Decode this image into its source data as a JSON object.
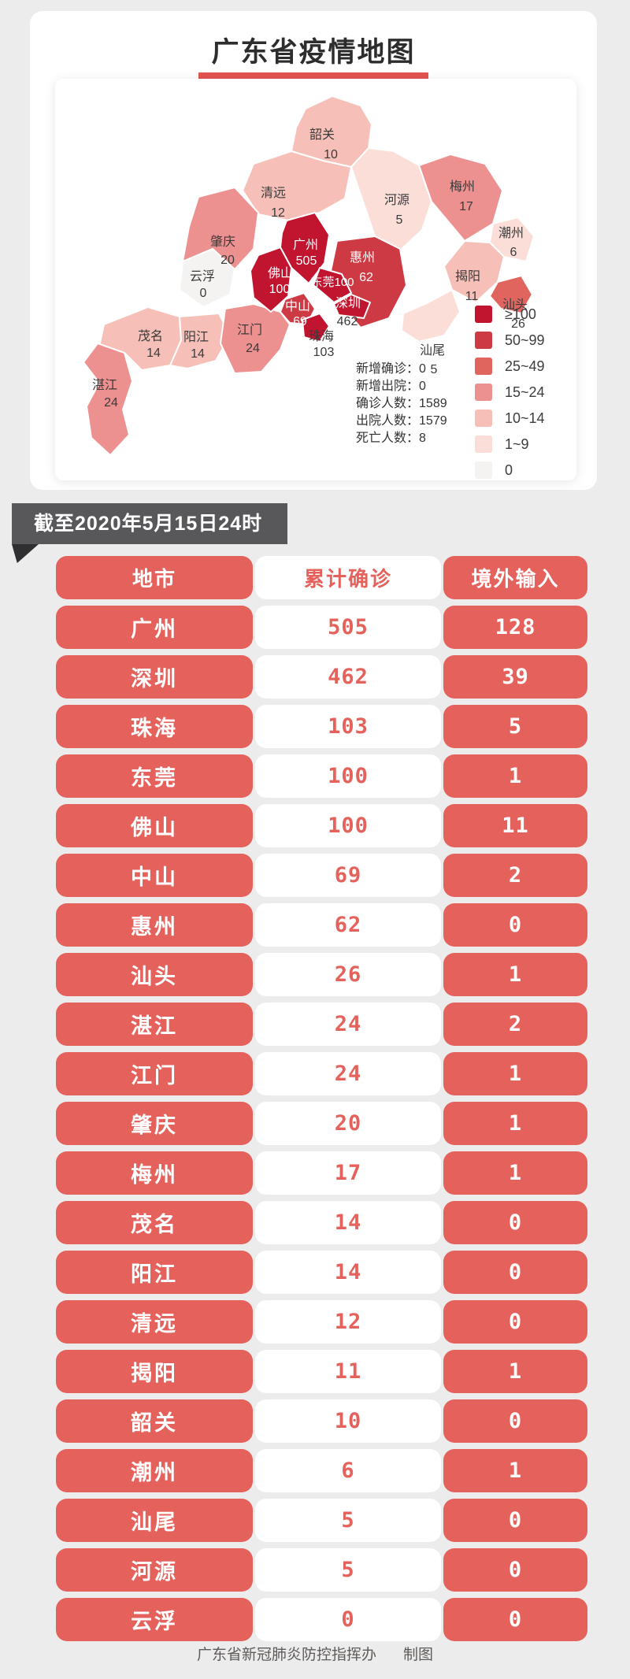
{
  "title": "广东省疫情地图",
  "map": {
    "cities": [
      {
        "name": "广州",
        "value": "505",
        "bucket": 0
      },
      {
        "name": "深圳",
        "value": "462",
        "bucket": 0
      },
      {
        "name": "珠海",
        "value": "103",
        "bucket": 0
      },
      {
        "name": "东莞",
        "value": "100",
        "bucket": 0
      },
      {
        "name": "佛山",
        "value": "100",
        "bucket": 0
      },
      {
        "name": "中山",
        "value": "69",
        "bucket": 1
      },
      {
        "name": "惠州",
        "value": "62",
        "bucket": 1
      },
      {
        "name": "汕头",
        "value": "26",
        "bucket": 2
      },
      {
        "name": "湛江",
        "value": "24",
        "bucket": 3
      },
      {
        "name": "江门",
        "value": "24",
        "bucket": 3
      },
      {
        "name": "肇庆",
        "value": "20",
        "bucket": 3
      },
      {
        "name": "梅州",
        "value": "17",
        "bucket": 3
      },
      {
        "name": "茂名",
        "value": "14",
        "bucket": 4
      },
      {
        "name": "阳江",
        "value": "14",
        "bucket": 4
      },
      {
        "name": "清远",
        "value": "12",
        "bucket": 4
      },
      {
        "name": "揭阳",
        "value": "11",
        "bucket": 4
      },
      {
        "name": "韶关",
        "value": "10",
        "bucket": 4
      },
      {
        "name": "潮州",
        "value": "6",
        "bucket": 5
      },
      {
        "name": "汕尾",
        "value": "5",
        "bucket": 5
      },
      {
        "name": "河源",
        "value": "5",
        "bucket": 5
      },
      {
        "name": "云浮",
        "value": "0",
        "bucket": 6
      }
    ],
    "legend": [
      {
        "label": "≥100",
        "color": "#c0142f"
      },
      {
        "label": "50~99",
        "color": "#ce3a44"
      },
      {
        "label": "25~49",
        "color": "#e0655f"
      },
      {
        "label": "15~24",
        "color": "#ec9090"
      },
      {
        "label": "10~14",
        "color": "#f6c0b8"
      },
      {
        "label": "1~9",
        "color": "#fbded8"
      },
      {
        "label": "0",
        "color": "#f4f3f1"
      }
    ],
    "stats": [
      {
        "label": "新增确诊",
        "value": "0"
      },
      {
        "label": "新增出院",
        "value": "0"
      },
      {
        "label": "确诊人数",
        "value": "1589"
      },
      {
        "label": "出院人数",
        "value": "1579"
      },
      {
        "label": "死亡人数",
        "value": "8"
      }
    ],
    "colon": "："
  },
  "banner": {
    "text": "截至2020年5月15日24时"
  },
  "table": {
    "headers": [
      "地市",
      "累计确诊",
      "境外输入"
    ],
    "rows": [
      [
        "广州",
        "505",
        "128"
      ],
      [
        "深圳",
        "462",
        "39"
      ],
      [
        "珠海",
        "103",
        "5"
      ],
      [
        "东莞",
        "100",
        "1"
      ],
      [
        "佛山",
        "100",
        "11"
      ],
      [
        "中山",
        "69",
        "2"
      ],
      [
        "惠州",
        "62",
        "0"
      ],
      [
        "汕头",
        "26",
        "1"
      ],
      [
        "湛江",
        "24",
        "2"
      ],
      [
        "江门",
        "24",
        "1"
      ],
      [
        "肇庆",
        "20",
        "1"
      ],
      [
        "梅州",
        "17",
        "1"
      ],
      [
        "茂名",
        "14",
        "0"
      ],
      [
        "阳江",
        "14",
        "0"
      ],
      [
        "清远",
        "12",
        "0"
      ],
      [
        "揭阳",
        "11",
        "1"
      ],
      [
        "韶关",
        "10",
        "0"
      ],
      [
        "潮州",
        "6",
        "1"
      ],
      [
        "汕尾",
        "5",
        "0"
      ],
      [
        "河源",
        "5",
        "0"
      ],
      [
        "云浮",
        "0",
        "0"
      ]
    ]
  },
  "footer": {
    "credit": "广东省新冠肺炎防控指挥办",
    "maker": "制图"
  },
  "colors": {
    "accent_red": "#e5625c",
    "title_underline": "#e4534f",
    "banner_bg": "#58585b",
    "banner_fold": "#2f2f31",
    "page_bg": "#ececec",
    "card_bg": "#ffffff",
    "text_dark": "#333333",
    "footer_text": "#5f5b59"
  },
  "chart_data": {
    "type": "table",
    "title": "广东省疫情地图",
    "columns": [
      "地市",
      "累计确诊",
      "境外输入"
    ],
    "rows": [
      [
        "广州",
        505,
        128
      ],
      [
        "深圳",
        462,
        39
      ],
      [
        "珠海",
        103,
        5
      ],
      [
        "东莞",
        100,
        1
      ],
      [
        "佛山",
        100,
        11
      ],
      [
        "中山",
        69,
        2
      ],
      [
        "惠州",
        62,
        0
      ],
      [
        "汕头",
        26,
        1
      ],
      [
        "湛江",
        24,
        2
      ],
      [
        "江门",
        24,
        1
      ],
      [
        "肇庆",
        20,
        1
      ],
      [
        "梅州",
        17,
        1
      ],
      [
        "茂名",
        14,
        0
      ],
      [
        "阳江",
        14,
        0
      ],
      [
        "清远",
        12,
        0
      ],
      [
        "揭阳",
        11,
        1
      ],
      [
        "韶关",
        10,
        0
      ],
      [
        "潮州",
        6,
        1
      ],
      [
        "汕尾",
        5,
        0
      ],
      [
        "河源",
        5,
        0
      ],
      [
        "云浮",
        0,
        0
      ]
    ],
    "legend_buckets": [
      "≥100",
      "50~99",
      "25~49",
      "15~24",
      "10~14",
      "1~9",
      "0"
    ],
    "summary": {
      "新增确诊": 0,
      "新增出院": 0,
      "确诊人数": 1589,
      "出院人数": 1579,
      "死亡人数": 8
    }
  }
}
